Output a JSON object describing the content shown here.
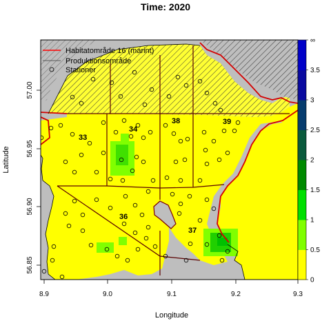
{
  "title": "Time: 2020",
  "x_axis": {
    "label": "Longitude",
    "ticks": [
      "8.9",
      "9.0",
      "9.1",
      "9.2",
      "9.3"
    ]
  },
  "y_axis": {
    "label": "Latitude",
    "ticks": [
      "56.85",
      "56.90",
      "56.95",
      "57.00"
    ]
  },
  "legend": {
    "items": [
      {
        "label": "Habitatområde 16 (marint)",
        "symbol": "line",
        "color": "#ff0000"
      },
      {
        "label": "Produktionsområde",
        "symbol": "line",
        "color": "#555555"
      },
      {
        "label": "Stationer",
        "symbol": "circle",
        "color": "#000000"
      }
    ]
  },
  "colorbar": {
    "labels": [
      "0",
      "0.5",
      "1",
      "1.5",
      "2",
      "2.5",
      "3",
      "3.5",
      "∞"
    ],
    "colors": [
      "#ffff00",
      "#80ff00",
      "#00e000",
      "#008a00",
      "#0a5a3c",
      "#063c6e",
      "#0a0aa0",
      "#0000c8"
    ]
  },
  "areas": [
    "33",
    "34",
    "38",
    "39",
    "36",
    "37"
  ],
  "colors": {
    "land": "#bebebe",
    "habitat_border": "#d40000",
    "area_border": "#5a0000",
    "hatch_fill": "#ffff33"
  }
}
